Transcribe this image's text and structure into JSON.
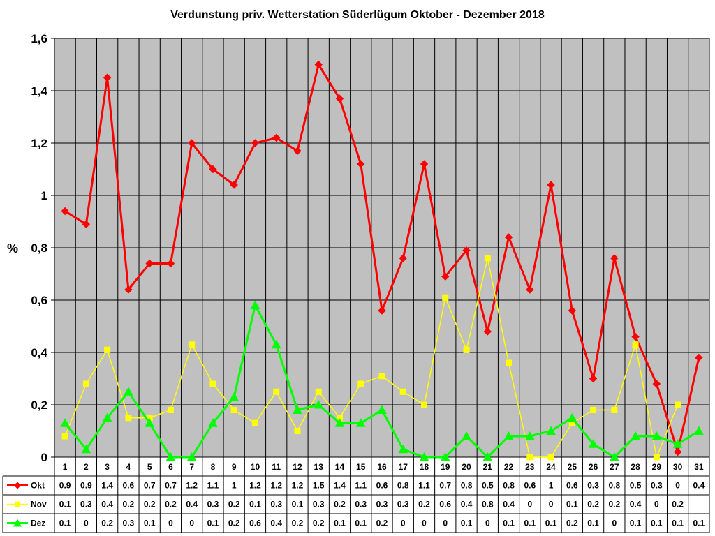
{
  "chart_data": {
    "type": "line",
    "title": "Verdunstung priv. Wetterstation Süderlügum Oktober - Dezember 2018",
    "ylabel": "%",
    "xlabel": "",
    "ylim": [
      0,
      1.6
    ],
    "yticks": [
      "0",
      "0,2",
      "0,4",
      "0,6",
      "0,8",
      "1",
      "1,2",
      "1,4",
      "1,6"
    ],
    "ytick_values": [
      0,
      0.2,
      0.4,
      0.6,
      0.8,
      1.0,
      1.2,
      1.4,
      1.6
    ],
    "grid": "vertical and horizontal, black lines on grey plot area",
    "legend": "data table below plot",
    "categories": [
      "1",
      "2",
      "3",
      "4",
      "5",
      "6",
      "7",
      "8",
      "9",
      "10",
      "11",
      "12",
      "13",
      "14",
      "15",
      "16",
      "17",
      "18",
      "19",
      "20",
      "21",
      "22",
      "23",
      "24",
      "25",
      "26",
      "27",
      "28",
      "29",
      "30",
      "31"
    ],
    "series": [
      {
        "name": "Okt",
        "color": "#ff0000",
        "marker": "diamond",
        "values": [
          0.94,
          0.89,
          1.45,
          0.64,
          0.74,
          0.74,
          1.2,
          1.1,
          1.04,
          1.2,
          1.22,
          1.17,
          1.5,
          1.37,
          1.12,
          0.56,
          0.76,
          1.12,
          0.69,
          0.79,
          0.48,
          0.84,
          0.64,
          1.04,
          0.56,
          0.3,
          0.76,
          0.46,
          0.28,
          0.02,
          0.38
        ],
        "table": [
          "0.9",
          "0.9",
          "1.4",
          "0.6",
          "0.7",
          "0.7",
          "1.2",
          "1.1",
          "1",
          "1.2",
          "1.2",
          "1.2",
          "1.5",
          "1.4",
          "1.1",
          "0.6",
          "0.8",
          "1.1",
          "0.7",
          "0.8",
          "0.5",
          "0.8",
          "0.6",
          "1",
          "0.6",
          "0.3",
          "0.8",
          "0.5",
          "0.3",
          "0",
          "0.4"
        ]
      },
      {
        "name": "Nov",
        "color": "#ffff00",
        "marker": "square",
        "values": [
          0.08,
          0.28,
          0.41,
          0.15,
          0.15,
          0.18,
          0.43,
          0.28,
          0.18,
          0.13,
          0.25,
          0.1,
          0.25,
          0.15,
          0.28,
          0.31,
          0.25,
          0.2,
          0.61,
          0.41,
          0.76,
          0.36,
          0.0,
          0.0,
          0.13,
          0.18,
          0.18,
          0.43,
          0.0,
          0.2,
          null
        ],
        "table": [
          "0.1",
          "0.3",
          "0.4",
          "0.2",
          "0.2",
          "0.2",
          "0.4",
          "0.3",
          "0.2",
          "0.1",
          "0.3",
          "0.1",
          "0.3",
          "0.2",
          "0.3",
          "0.3",
          "0.3",
          "0.2",
          "0.6",
          "0.4",
          "0.8",
          "0.4",
          "0",
          "0",
          "0.1",
          "0.2",
          "0.2",
          "0.4",
          "0",
          "0.2",
          ""
        ]
      },
      {
        "name": "Dez",
        "color": "#00ff00",
        "marker": "triangle",
        "values": [
          0.13,
          0.03,
          0.15,
          0.25,
          0.13,
          0.0,
          0.0,
          0.13,
          0.23,
          0.58,
          0.43,
          0.18,
          0.2,
          0.13,
          0.13,
          0.18,
          0.03,
          0.0,
          0.0,
          0.08,
          0.0,
          0.08,
          0.08,
          0.1,
          0.15,
          0.05,
          0.0,
          0.08,
          0.08,
          0.05,
          0.1
        ],
        "table": [
          "0.1",
          "0",
          "0.2",
          "0.3",
          "0.1",
          "0",
          "0",
          "0.1",
          "0.2",
          "0.6",
          "0.4",
          "0.2",
          "0.2",
          "0.1",
          "0.1",
          "0.2",
          "0",
          "0",
          "0",
          "0.1",
          "0",
          "0.1",
          "0.1",
          "0.1",
          "0.2",
          "0.1",
          "0",
          "0.1",
          "0.1",
          "0.1",
          "0.1"
        ]
      }
    ],
    "plot_background": "#c0c0c0"
  }
}
